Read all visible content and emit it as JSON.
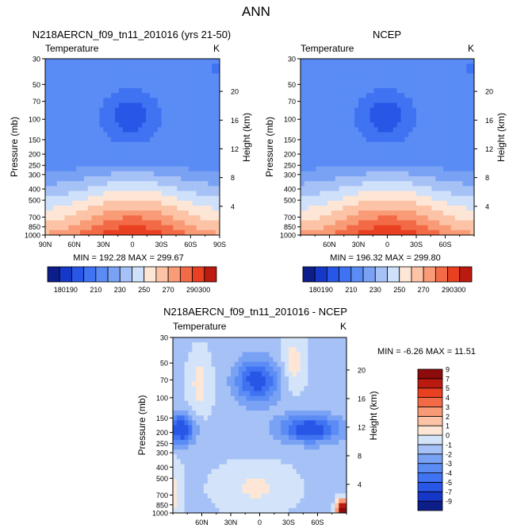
{
  "main_title": "ANN",
  "panels": [
    {
      "title": "N218AERCN_f09_tn11_201016 (yrs 21-50)",
      "variable": "Temperature",
      "units": "K",
      "stats_text": "MIN = 192.28   MAX = 299.67"
    },
    {
      "title": "NCEP",
      "variable": "Temperature",
      "units": "K",
      "stats_text": "MIN = 196.32   MAX = 299.80"
    },
    {
      "title": "N218AERCN_f09_tn11_201016 - NCEP",
      "variable": "Temperature",
      "units": "K",
      "stats_text": "MIN =  -6.26   MAX =  11.51"
    }
  ],
  "chart_data": {
    "type": "heatmap",
    "description_axes": {
      "ylabel_left": "Pressure (mb)",
      "ylabel_right": "Height (km)",
      "pressure_ticks": [
        "30",
        "50",
        "70",
        "100",
        "150",
        "200",
        "250",
        "300",
        "400",
        "500",
        "700",
        "850",
        "1000"
      ],
      "pressure_values": [
        30,
        50,
        70,
        100,
        150,
        200,
        250,
        300,
        400,
        500,
        700,
        850,
        1000
      ],
      "height_ticks": [
        "4",
        "8",
        "12",
        "16",
        "20"
      ],
      "height_values": [
        4,
        8,
        12,
        16,
        20
      ],
      "lat_ticks_full": [
        "90N",
        "60N",
        "30N",
        "0",
        "30S",
        "60S",
        "90S"
      ],
      "lat_values_full": [
        90,
        60,
        30,
        0,
        -30,
        -60,
        -90
      ],
      "lat_ticks_inner": [
        "60N",
        "30N",
        "0",
        "30S",
        "60S"
      ],
      "lat_values_inner": [
        60,
        30,
        0,
        -30,
        -60
      ],
      "xlim": [
        90,
        -90
      ],
      "ylim_mb": [
        30,
        1000
      ]
    },
    "temperature_levels": [
      180,
      190,
      200,
      210,
      220,
      230,
      240,
      250,
      260,
      270,
      280,
      290,
      300
    ],
    "temperature_label_ticks": [
      "180",
      "190",
      "210",
      "230",
      "250",
      "270",
      "290",
      "300"
    ],
    "temperature_colors": [
      "#0d1d8a",
      "#1638c8",
      "#2856e6",
      "#3f73f2",
      "#5b8cf5",
      "#7aa2f4",
      "#a5c1f6",
      "#cfe0fa",
      "#fde6d6",
      "#fcc3a6",
      "#f99b76",
      "#f36a46",
      "#e84020",
      "#ba1a10"
    ],
    "difference_levels": [
      -9,
      -7,
      -5,
      -4,
      -3,
      -2,
      -1,
      0,
      1,
      2,
      3,
      4,
      5,
      7,
      9
    ],
    "difference_label_ticks": [
      "-9",
      "-7",
      "-5",
      "-4",
      "-3",
      "-2",
      "-1",
      "0",
      "1",
      "2",
      "3",
      "4",
      "5",
      "7",
      "9"
    ],
    "difference_colors": [
      "#0d1d8a",
      "#1638c8",
      "#2856e6",
      "#3f73f2",
      "#5b8cf5",
      "#7aa2f4",
      "#a5c1f6",
      "#d3e4fa",
      "#fde6d6",
      "#fcc3a6",
      "#f99b76",
      "#f36a46",
      "#e84020",
      "#ba1a10",
      "#8c0b0b"
    ],
    "series": [
      {
        "name": "N218AERCN_f09_tn11_201016 (yrs 21-50)",
        "field": "temperature",
        "min": 192.28,
        "max": 299.67
      },
      {
        "name": "NCEP",
        "field": "temperature",
        "min": 196.32,
        "max": 299.8
      },
      {
        "name": "N218AERCN_f09_tn11_201016 - NCEP",
        "field": "difference",
        "min": -6.26,
        "max": 11.51
      }
    ]
  }
}
